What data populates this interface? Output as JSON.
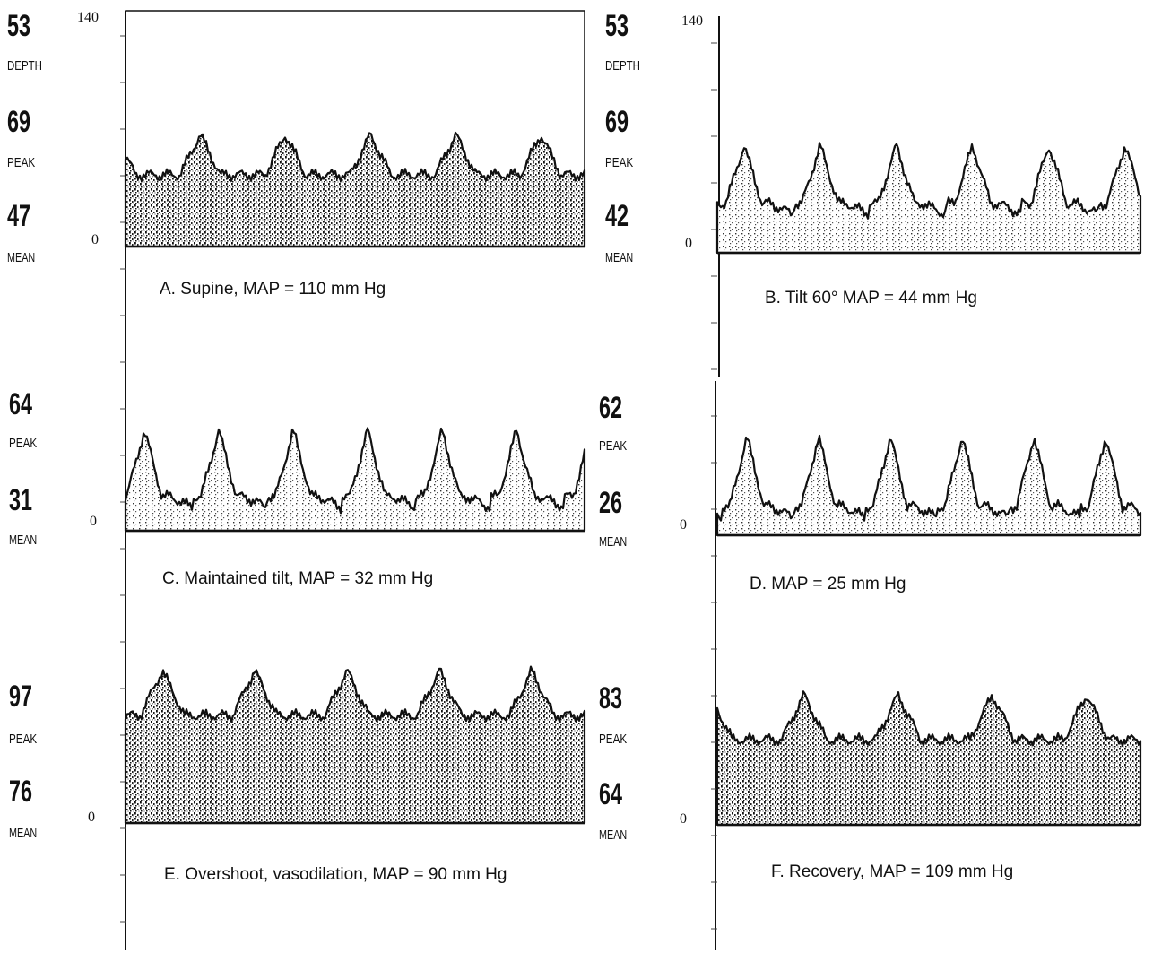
{
  "panels": [
    {
      "caption": "A. Supine, MAP = 110 mm Hg",
      "axis_labels": [
        "140",
        "0"
      ],
      "readouts": [
        {
          "value": "53",
          "label": "DEPTH"
        },
        {
          "value": "69",
          "label": "PEAK"
        },
        {
          "value": "47",
          "label": "MEAN"
        }
      ]
    },
    {
      "caption": "B.  Tilt 60° MAP = 44 mm Hg",
      "axis_labels": [
        "140",
        "0"
      ],
      "readouts": [
        {
          "value": "53",
          "label": "DEPTH"
        },
        {
          "value": "69",
          "label": "PEAK"
        },
        {
          "value": "42",
          "label": "MEAN"
        }
      ]
    },
    {
      "caption": "C.  Maintained tilt, MAP = 32 mm Hg",
      "axis_labels": [
        "0"
      ],
      "readouts": [
        {
          "value": "64",
          "label": "PEAK"
        },
        {
          "value": "31",
          "label": "MEAN"
        }
      ]
    },
    {
      "caption": "D.  MAP = 25 mm Hg",
      "axis_labels": [
        "0"
      ],
      "readouts": [
        {
          "value": "62",
          "label": "PEAK"
        },
        {
          "value": "26",
          "label": "MEAN"
        }
      ]
    },
    {
      "caption": "E. Overshoot, vasodilation, MAP = 90 mm Hg",
      "axis_labels": [
        "0"
      ],
      "readouts": [
        {
          "value": "97",
          "label": "PEAK"
        },
        {
          "value": "76",
          "label": "MEAN"
        }
      ]
    },
    {
      "caption": "F. Recovery, MAP = 109 mm Hg",
      "axis_labels": [
        "0"
      ],
      "readouts": [
        {
          "value": "83",
          "label": "PEAK"
        },
        {
          "value": "64",
          "label": "MEAN"
        }
      ]
    }
  ]
}
